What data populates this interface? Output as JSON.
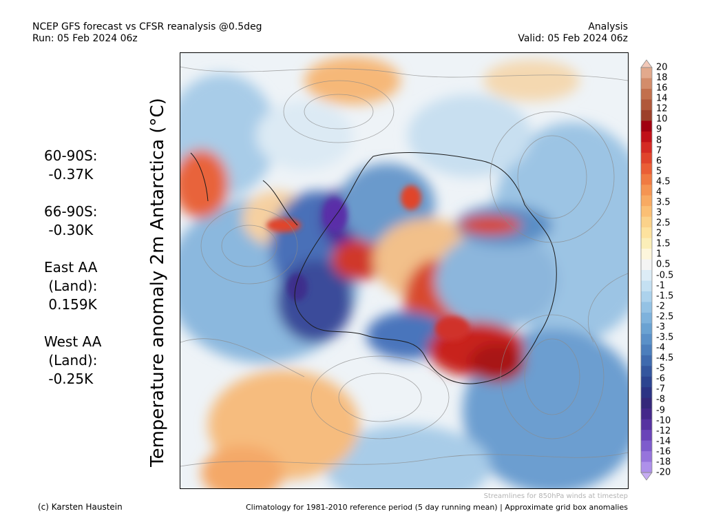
{
  "header": {
    "title_line1": "NCEP GFS forecast vs CFSR reanalysis @0.5deg",
    "title_line2": "Run: 05 Feb 2024 06z",
    "right_line1": "Analysis",
    "right_line2": "Valid: 05 Feb 2024 06z"
  },
  "map_title": "Temperature anomaly 2m Antarctica (°C)",
  "stats": [
    {
      "label": "60-90S:",
      "value": " -0.37K"
    },
    {
      "label": "66-90S:",
      "value": " -0.30K"
    },
    {
      "label": "East AA",
      "label2": " (Land):",
      "value": " 0.159K"
    },
    {
      "label": "West AA",
      "label2": " (Land):",
      "value": " -0.25K"
    }
  ],
  "colorbar": {
    "labels": [
      "20",
      "18",
      "16",
      "14",
      "12",
      "10",
      "9",
      "8",
      "7",
      "6",
      "5",
      "4.5",
      "4",
      "3.5",
      "3",
      "2.5",
      "2",
      "1.5",
      "1",
      "0.5",
      "-0.5",
      "-1",
      "-1.5",
      "-2",
      "-2.5",
      "-3",
      "-3.5",
      "-4",
      "-4.5",
      "-5",
      "-6",
      "-7",
      "-8",
      "-9",
      "-10",
      "-12",
      "-14",
      "-16",
      "-18",
      "-20"
    ],
    "colors": [
      "#f2c8b8",
      "#e2a98c",
      "#d38c6a",
      "#c2704d",
      "#b0583a",
      "#9c402a",
      "#a00010",
      "#c01018",
      "#d42a24",
      "#e0442c",
      "#ea5e36",
      "#f07a42",
      "#f59452",
      "#f8aa62",
      "#fbbf74",
      "#fbd28a",
      "#fde29e",
      "#fbeeb8",
      "#fdf6dc",
      "#f4f4f4",
      "#dcecf6",
      "#c4e0f2",
      "#acd2ec",
      "#94c2e4",
      "#7eb2dc",
      "#6aa2d2",
      "#5a90c8",
      "#4c7ebc",
      "#3f6aae",
      "#34569e",
      "#2c4490",
      "#2b3384",
      "#34287a",
      "#44288a",
      "#5632a0",
      "#6a44b8",
      "#7e5ccc",
      "#9674dc",
      "#ae90ea",
      "#c6acf2"
    ]
  },
  "footer": {
    "streamlines_note": "Streamlines for 850hPa winds at timestep",
    "credit": "(c) Karsten Haustein",
    "climatology": "Climatology for 1981-2010 reference period (5 day running mean) | Approximate grid box anomalies"
  },
  "colors": {
    "warm_strong": "#c8201c",
    "warm": "#e8643a",
    "warm_light": "#f6b878",
    "cool_light": "#a8cce8",
    "cool": "#5a8ec6",
    "cool_strong": "#2e3f92",
    "cold_extreme": "#4b2a9a",
    "streamline": "#8a8a8a"
  }
}
